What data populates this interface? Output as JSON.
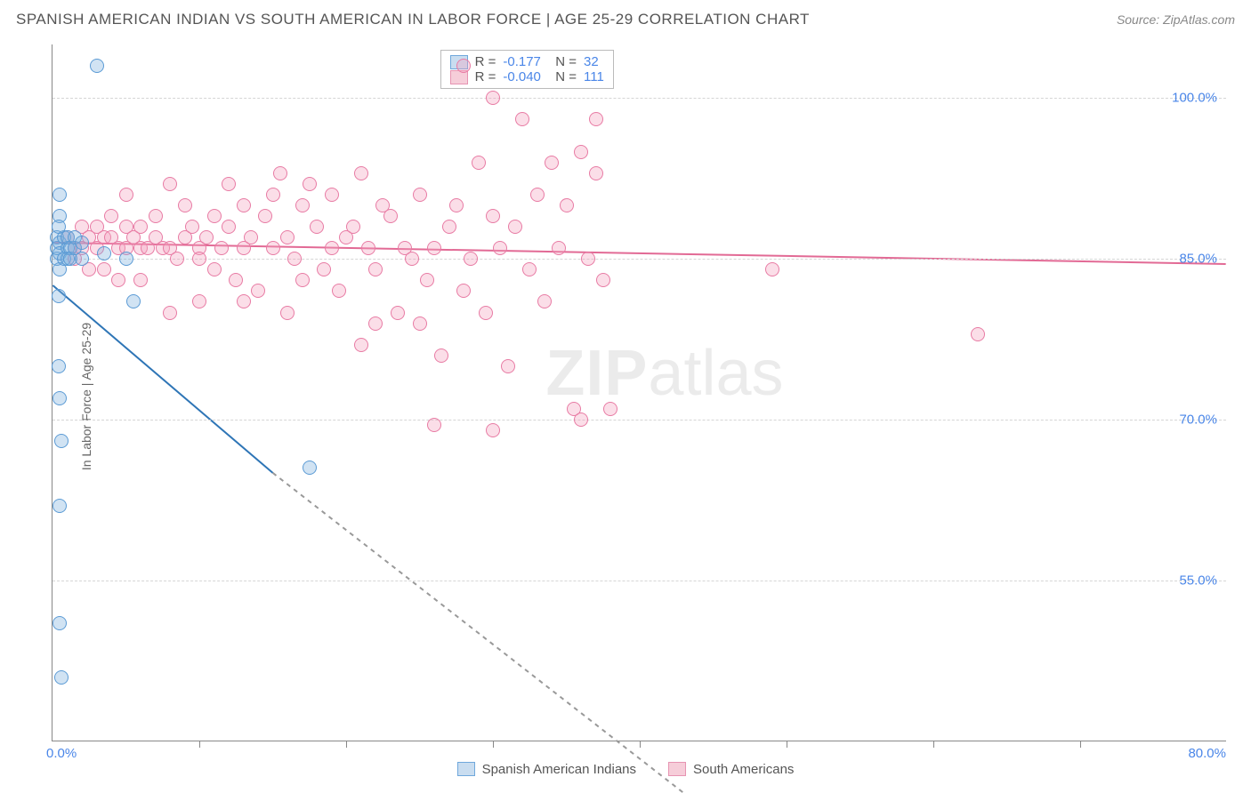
{
  "title": "SPANISH AMERICAN INDIAN VS SOUTH AMERICAN IN LABOR FORCE | AGE 25-29 CORRELATION CHART",
  "source": "Source: ZipAtlas.com",
  "ylabel": "In Labor Force | Age 25-29",
  "watermark": {
    "zip": "ZIP",
    "rest": "atlas"
  },
  "chart": {
    "type": "scatter-with-trend",
    "background_color": "#ffffff",
    "axis_color": "#888888",
    "grid_color": "#d5d5d5",
    "label_color": "#666666",
    "tick_label_color": "#4a86e8",
    "title_fontsize": 17,
    "label_fontsize": 14,
    "tick_fontsize": 15,
    "xlim": [
      0,
      80
    ],
    "ylim": [
      40,
      105
    ],
    "xtick_positions": [
      10,
      20,
      30,
      40,
      50,
      60,
      70
    ],
    "ytick_labels": [
      {
        "value": 100,
        "text": "100.0%"
      },
      {
        "value": 85,
        "text": "85.0%"
      },
      {
        "value": 70,
        "text": "70.0%"
      },
      {
        "value": 55,
        "text": "55.0%"
      }
    ],
    "x_origin_label": "0.0%",
    "x_end_label": "80.0%",
    "marker_radius": 8,
    "series": [
      {
        "name": "Spanish American Indians",
        "fill": "rgba(123,175,222,0.35)",
        "stroke": "#5b9bd5",
        "legend_swatch_fill": "#c9ddf0",
        "legend_swatch_border": "#6fa8dc",
        "R": "-0.177",
        "N": "32",
        "trend": {
          "color": "#2e75b6",
          "width": 2,
          "solid_from": [
            0,
            82.5
          ],
          "solid_to": [
            15,
            65
          ],
          "dash_to": [
            45,
            33
          ]
        },
        "points": [
          [
            0.3,
            87
          ],
          [
            0.3,
            85
          ],
          [
            0.3,
            86
          ],
          [
            0.5,
            86.5
          ],
          [
            0.5,
            84
          ],
          [
            0.5,
            85.5
          ],
          [
            0.8,
            87
          ],
          [
            0.8,
            85
          ],
          [
            1.0,
            86
          ],
          [
            1.0,
            85
          ],
          [
            1.0,
            87
          ],
          [
            1.2,
            86
          ],
          [
            1.2,
            85
          ],
          [
            1.5,
            86
          ],
          [
            1.5,
            87
          ],
          [
            2.0,
            86.5
          ],
          [
            2.0,
            85
          ],
          [
            3.5,
            85.5
          ],
          [
            5.0,
            85
          ],
          [
            0.4,
            81.5
          ],
          [
            5.5,
            81
          ],
          [
            0.4,
            75
          ],
          [
            0.5,
            72
          ],
          [
            0.6,
            68
          ],
          [
            0.5,
            62
          ],
          [
            17.5,
            65.5
          ],
          [
            0.5,
            51
          ],
          [
            0.6,
            46
          ],
          [
            0.5,
            91
          ],
          [
            0.5,
            89
          ],
          [
            3.0,
            103
          ],
          [
            0.4,
            88
          ]
        ]
      },
      {
        "name": "South Americans",
        "fill": "rgba(244,160,188,0.35)",
        "stroke": "#e87ba4",
        "legend_swatch_fill": "#f6cdd9",
        "legend_swatch_border": "#e794b2",
        "R": "-0.040",
        "N": "111",
        "trend": {
          "color": "#e26a95",
          "width": 2,
          "solid_from": [
            0,
            86.5
          ],
          "solid_to": [
            80,
            84.5
          ],
          "dash_to": null
        },
        "points": [
          [
            1,
            87
          ],
          [
            1.5,
            86
          ],
          [
            2,
            88
          ],
          [
            2,
            86
          ],
          [
            2.5,
            87
          ],
          [
            3,
            88
          ],
          [
            3,
            86
          ],
          [
            3.5,
            87
          ],
          [
            4,
            89
          ],
          [
            4,
            87
          ],
          [
            4.5,
            86
          ],
          [
            5,
            91
          ],
          [
            5,
            88
          ],
          [
            5,
            86
          ],
          [
            5.5,
            87
          ],
          [
            6,
            86
          ],
          [
            6,
            88
          ],
          [
            6.5,
            86
          ],
          [
            7,
            89
          ],
          [
            7,
            87
          ],
          [
            7.5,
            86
          ],
          [
            8,
            92
          ],
          [
            8,
            86
          ],
          [
            8.5,
            85
          ],
          [
            9,
            87
          ],
          [
            9,
            90
          ],
          [
            9.5,
            88
          ],
          [
            10,
            86
          ],
          [
            10,
            85
          ],
          [
            10.5,
            87
          ],
          [
            11,
            89
          ],
          [
            11,
            84
          ],
          [
            11.5,
            86
          ],
          [
            12,
            92
          ],
          [
            12,
            88
          ],
          [
            12.5,
            83
          ],
          [
            13,
            90
          ],
          [
            13,
            86
          ],
          [
            13.5,
            87
          ],
          [
            14,
            82
          ],
          [
            14.5,
            89
          ],
          [
            15,
            91
          ],
          [
            15,
            86
          ],
          [
            15.5,
            93
          ],
          [
            16,
            87
          ],
          [
            16,
            80
          ],
          [
            16.5,
            85
          ],
          [
            17,
            90
          ],
          [
            17.5,
            92
          ],
          [
            18,
            88
          ],
          [
            18.5,
            84
          ],
          [
            19,
            86
          ],
          [
            19,
            91
          ],
          [
            19.5,
            82
          ],
          [
            20,
            87
          ],
          [
            20.5,
            88
          ],
          [
            21,
            93
          ],
          [
            21,
            77
          ],
          [
            21.5,
            86
          ],
          [
            22,
            84
          ],
          [
            22.5,
            90
          ],
          [
            23,
            89
          ],
          [
            23.5,
            80
          ],
          [
            24,
            86
          ],
          [
            24.5,
            85
          ],
          [
            25,
            91
          ],
          [
            25.5,
            83
          ],
          [
            26,
            86
          ],
          [
            26.5,
            76
          ],
          [
            27,
            88
          ],
          [
            27.5,
            90
          ],
          [
            28,
            82
          ],
          [
            28,
            103
          ],
          [
            28.5,
            85
          ],
          [
            29,
            94
          ],
          [
            29.5,
            80
          ],
          [
            30,
            89
          ],
          [
            30,
            100
          ],
          [
            30.5,
            86
          ],
          [
            31,
            75
          ],
          [
            31.5,
            88
          ],
          [
            32,
            98
          ],
          [
            32.5,
            84
          ],
          [
            33,
            91
          ],
          [
            33.5,
            81
          ],
          [
            34,
            94
          ],
          [
            34.5,
            86
          ],
          [
            35,
            90
          ],
          [
            35.5,
            71
          ],
          [
            36,
            95
          ],
          [
            36,
            70
          ],
          [
            36.5,
            85
          ],
          [
            30,
            69
          ],
          [
            37,
            98
          ],
          [
            37.5,
            83
          ],
          [
            38,
            71
          ],
          [
            26,
            69.5
          ],
          [
            49,
            84
          ],
          [
            63,
            78
          ],
          [
            37,
            93
          ],
          [
            1.5,
            85
          ],
          [
            2.5,
            84
          ],
          [
            3.5,
            84
          ],
          [
            4.5,
            83
          ],
          [
            6,
            83
          ],
          [
            8,
            80
          ],
          [
            10,
            81
          ],
          [
            13,
            81
          ],
          [
            17,
            83
          ],
          [
            22,
            79
          ],
          [
            25,
            79
          ]
        ]
      }
    ]
  },
  "legend_bottom": [
    {
      "label": "Spanish American Indians",
      "fill": "#c9ddf0",
      "border": "#6fa8dc"
    },
    {
      "label": "South Americans",
      "fill": "#f6cdd9",
      "border": "#e794b2"
    }
  ]
}
